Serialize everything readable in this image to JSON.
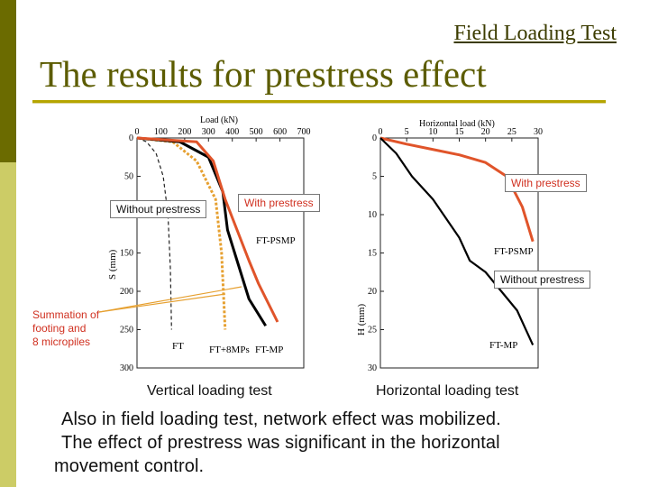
{
  "header": {
    "link_text": "Field Loading Test",
    "title": "The results for prestress effect"
  },
  "colors": {
    "sidebar_dark": "#6b6b00",
    "sidebar_light": "#cccc66",
    "accent": "#b5a500",
    "prestress": "#e0542a",
    "micropile_sum": "#e6a030"
  },
  "captions": {
    "vertical": "Vertical loading test",
    "horizontal": "Horizontal loading test"
  },
  "callouts": {
    "without_prestress_left": "Without prestress",
    "with_prestress_left": "With prestress",
    "with_prestress_right": "With prestress",
    "without_prestress_right": "Without prestress"
  },
  "note": {
    "line1": "Summation of",
    "line2": "footing and",
    "line3": "8 micropiles"
  },
  "body": {
    "line1": "Also in field loading test, network effect was mobilized.",
    "line2": "The effect of prestress was significant in the horizontal",
    "line3": "movement control."
  },
  "chart_data": [
    {
      "type": "line",
      "xlabel": "Load (kN)",
      "ylabel": "S (mm)",
      "xticks": [
        "0",
        "100",
        "200",
        "300",
        "400",
        "500",
        "600",
        "700"
      ],
      "yticks": [
        "0",
        "50",
        "100",
        "150",
        "200",
        "250",
        "300"
      ],
      "xlim": [
        0,
        700
      ],
      "ylim": [
        0,
        300
      ],
      "series": [
        {
          "name": "FT",
          "x": [
            0,
            40,
            80,
            110,
            130,
            140,
            145
          ],
          "y": [
            0,
            5,
            20,
            50,
            100,
            170,
            250
          ]
        },
        {
          "name": "FT+8MPs",
          "x": [
            0,
            150,
            250,
            330,
            355,
            370
          ],
          "y": [
            0,
            5,
            30,
            80,
            150,
            250
          ]
        },
        {
          "name": "FT-MP",
          "x": [
            0,
            180,
            300,
            360,
            380,
            420,
            470,
            540
          ],
          "y": [
            0,
            5,
            25,
            70,
            120,
            160,
            210,
            245
          ]
        },
        {
          "name": "FT-PSMP",
          "x": [
            0,
            250,
            320,
            370,
            420,
            470,
            510,
            590
          ],
          "y": [
            0,
            5,
            30,
            80,
            120,
            160,
            190,
            240
          ]
        }
      ],
      "annotations": [
        "FT-PSMP",
        "FT",
        "FT+8MPs",
        "FT-MP"
      ]
    },
    {
      "type": "line",
      "xlabel": "Horizontal load (kN)",
      "ylabel": "H (mm)",
      "xticks": [
        "0",
        "5",
        "10",
        "15",
        "20",
        "25",
        "30"
      ],
      "yticks": [
        "0",
        "5",
        "10",
        "15",
        "20",
        "25",
        "30"
      ],
      "xlim": [
        0,
        30
      ],
      "ylim": [
        0,
        30
      ],
      "series": [
        {
          "name": "FT-PSMP",
          "x": [
            0,
            5,
            10,
            15,
            20,
            24,
            27,
            29
          ],
          "y": [
            0,
            0.8,
            1.5,
            2.2,
            3.2,
            5.0,
            9.0,
            13.5
          ]
        },
        {
          "name": "FT-MP",
          "x": [
            0,
            3,
            6,
            10,
            12,
            15,
            17,
            20,
            23,
            26,
            29
          ],
          "y": [
            0,
            2,
            5,
            8,
            10,
            13,
            16,
            17.5,
            20,
            22.5,
            27
          ]
        }
      ],
      "annotations": [
        "FT-PSMP",
        "FT-MP"
      ]
    }
  ]
}
